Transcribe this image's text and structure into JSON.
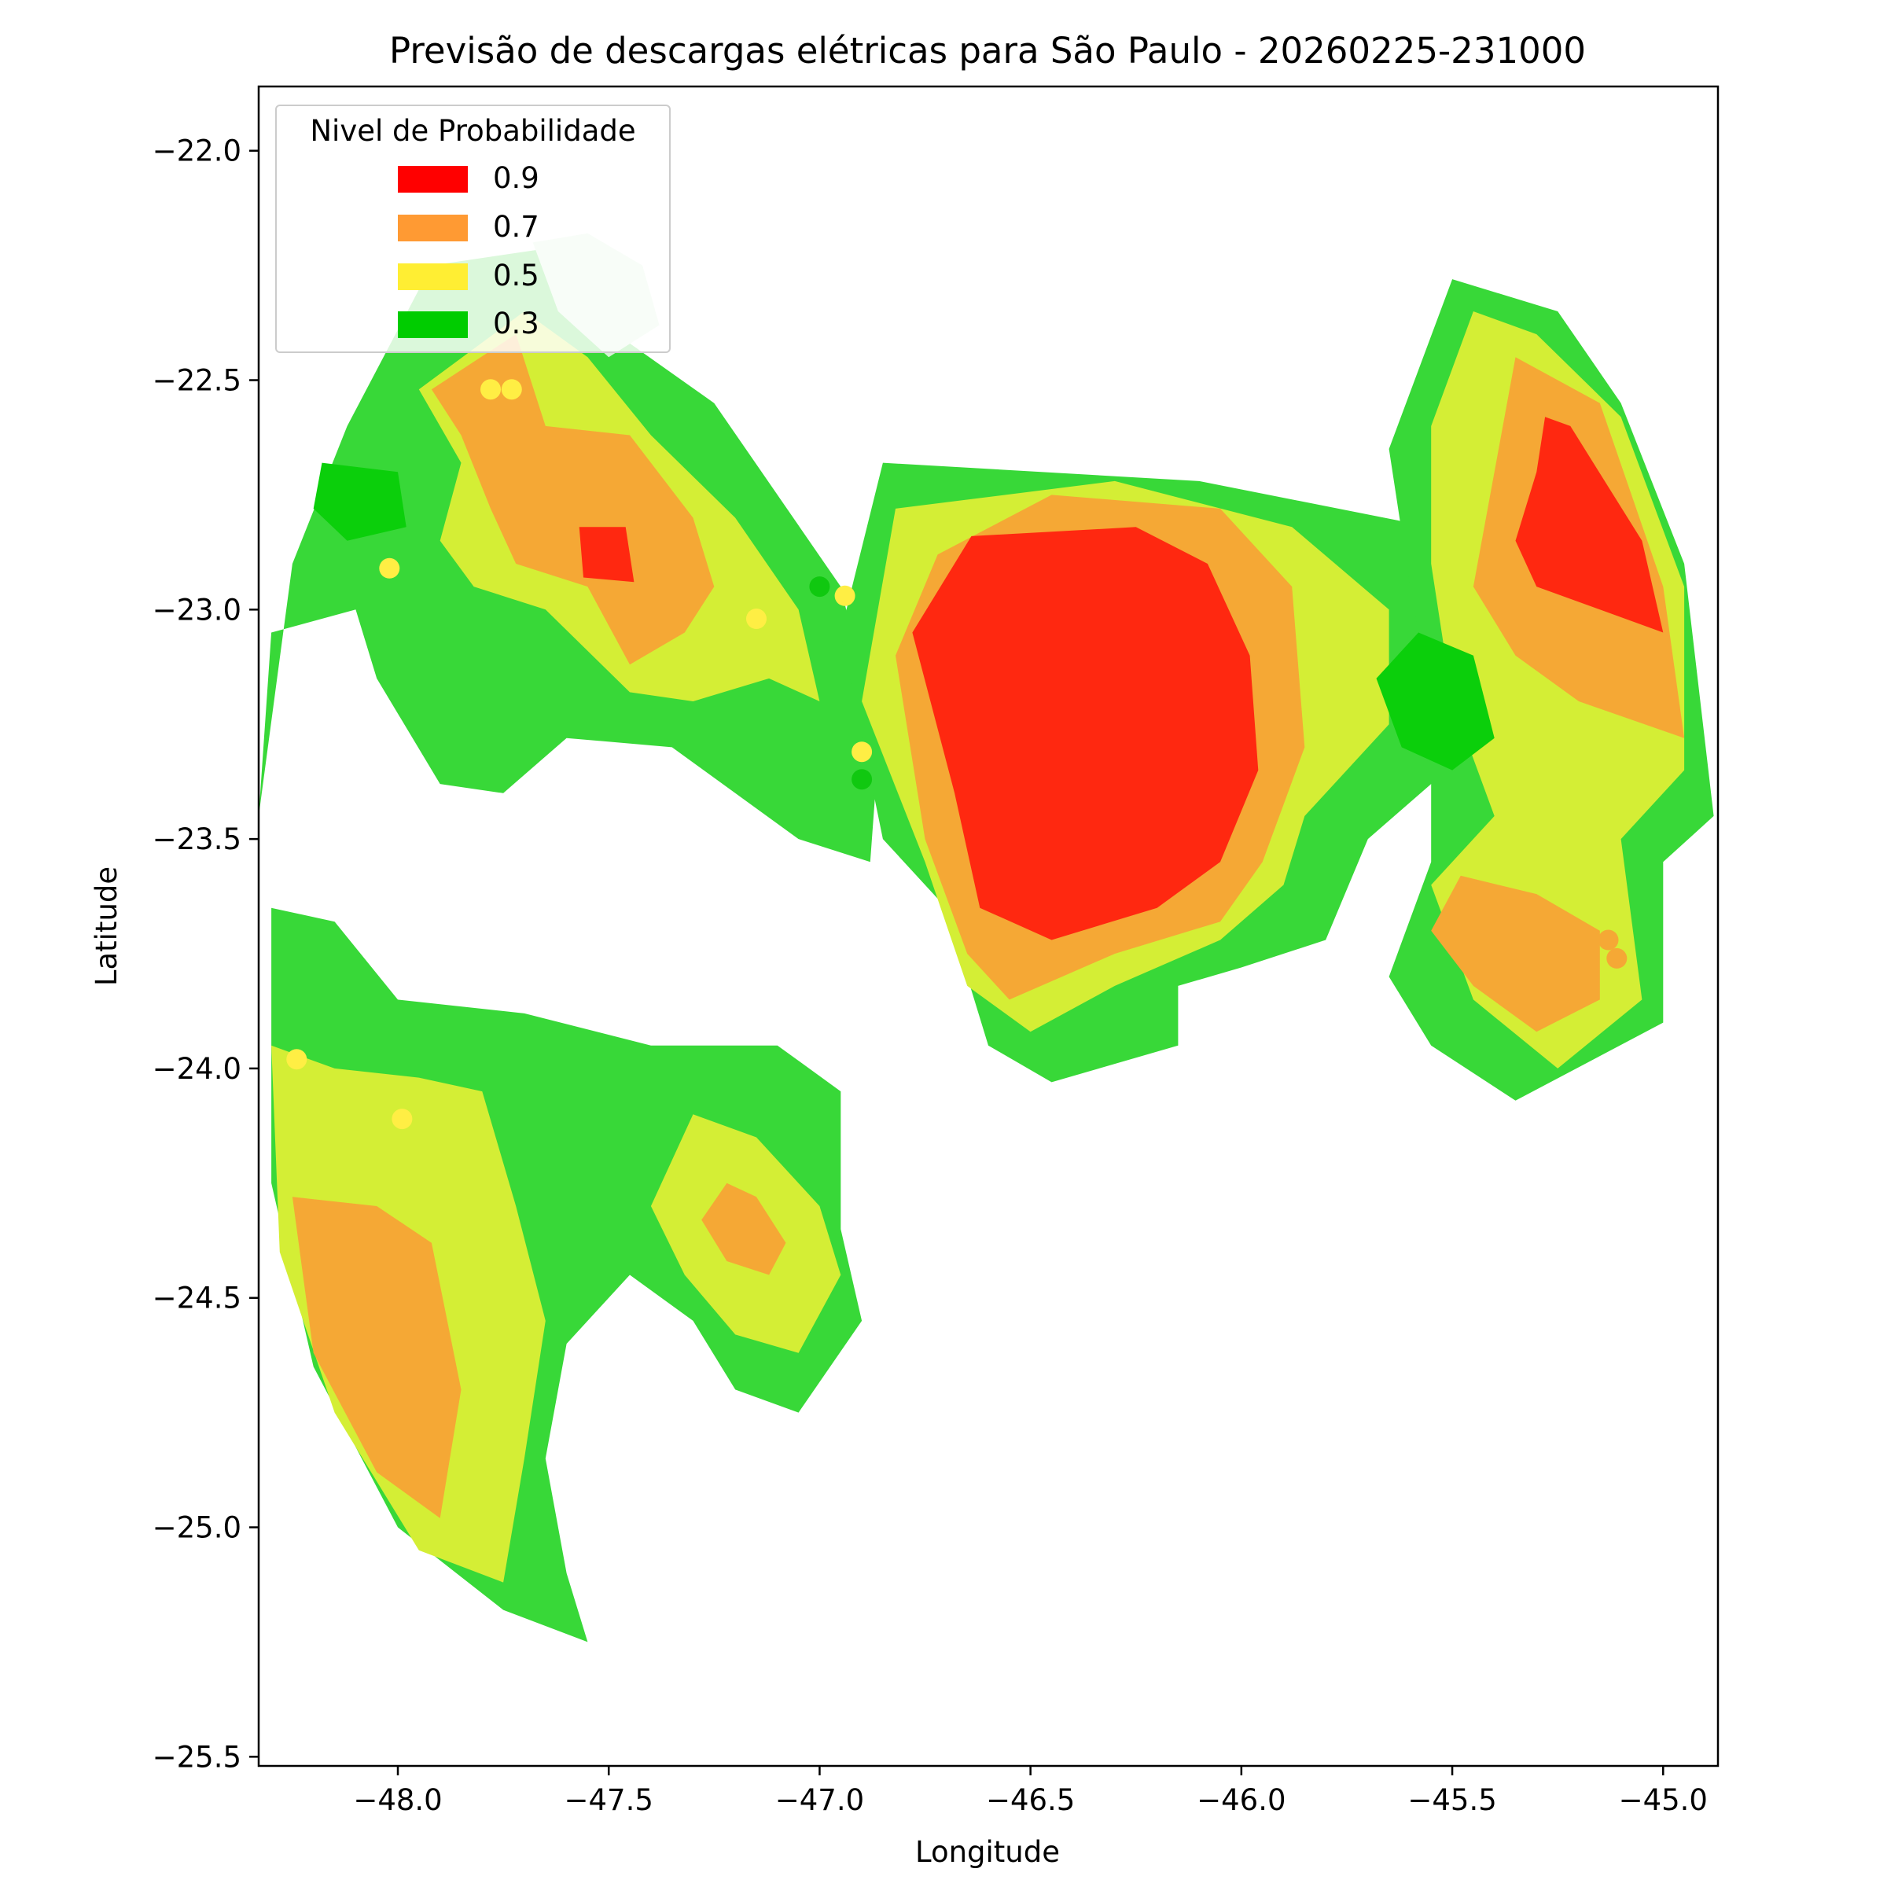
{
  "chart_data": {
    "type": "heatmap",
    "title": "Previsão de descargas elétricas para São Paulo - 20260225-231000",
    "xlabel": "Longitude",
    "ylabel": "Latitude",
    "xlim": [
      -48.33,
      -44.87
    ],
    "ylim": [
      -25.52,
      -21.86
    ],
    "xticks": [
      -48.0,
      -47.5,
      -47.0,
      -46.5,
      -46.0,
      -45.5,
      -45.0
    ],
    "xtick_labels": [
      "−48.0",
      "−47.5",
      "−47.0",
      "−46.5",
      "−46.0",
      "−45.5",
      "−45.0"
    ],
    "yticks": [
      -22.0,
      -22.5,
      -23.0,
      -23.5,
      -24.0,
      -24.5,
      -25.0,
      -25.5
    ],
    "ytick_labels": [
      "−22.0",
      "−22.5",
      "−23.0",
      "−23.5",
      "−24.0",
      "−24.5",
      "−25.0",
      "−25.5"
    ],
    "legend": {
      "title": "Nivel de Probabilidade",
      "placement": "upper-left",
      "entries": [
        {
          "label": "0.9",
          "color": "#ff0000"
        },
        {
          "label": "0.7",
          "color": "#ff9a33"
        },
        {
          "label": "0.5",
          "color": "#ffee33"
        },
        {
          "label": "0.3",
          "color": "#00cc00"
        }
      ]
    },
    "fill_colors": {
      "0.3": "#38d838",
      "0.5": "#d4ee35",
      "0.7": "#f5a835",
      "0.9": "#ff2810",
      "dense_0.3": "#0bcf0b",
      "faded": "#d5f3d5"
    },
    "regions": [
      {
        "name": "west-green-0.3",
        "level": "0.3",
        "points": [
          [
            -47.92,
            -22.25
          ],
          [
            -47.55,
            -22.2
          ],
          [
            -47.45,
            -22.42
          ],
          [
            -47.25,
            -22.55
          ],
          [
            -47.1,
            -22.75
          ],
          [
            -46.95,
            -22.95
          ],
          [
            -46.86,
            -23.3
          ],
          [
            -46.88,
            -23.55
          ],
          [
            -47.05,
            -23.5
          ],
          [
            -47.35,
            -23.3
          ],
          [
            -47.6,
            -23.28
          ],
          [
            -47.75,
            -23.4
          ],
          [
            -47.9,
            -23.38
          ],
          [
            -48.05,
            -23.15
          ],
          [
            -48.1,
            -23.0
          ],
          [
            -48.3,
            -23.05
          ],
          [
            -48.33,
            -23.45
          ],
          [
            -48.25,
            -22.9
          ],
          [
            -48.12,
            -22.6
          ]
        ]
      },
      {
        "name": "west-yellow-0.5",
        "level": "0.5",
        "points": [
          [
            -47.95,
            -22.52
          ],
          [
            -47.7,
            -22.35
          ],
          [
            -47.55,
            -22.45
          ],
          [
            -47.4,
            -22.62
          ],
          [
            -47.2,
            -22.8
          ],
          [
            -47.05,
            -23.0
          ],
          [
            -47.0,
            -23.2
          ],
          [
            -47.12,
            -23.15
          ],
          [
            -47.3,
            -23.2
          ],
          [
            -47.45,
            -23.18
          ],
          [
            -47.65,
            -23.0
          ],
          [
            -47.82,
            -22.95
          ],
          [
            -47.9,
            -22.85
          ],
          [
            -47.85,
            -22.68
          ]
        ]
      },
      {
        "name": "west-orange-0.7",
        "level": "0.7",
        "points": [
          [
            -47.92,
            -22.52
          ],
          [
            -47.72,
            -22.4
          ],
          [
            -47.65,
            -22.6
          ],
          [
            -47.45,
            -22.62
          ],
          [
            -47.3,
            -22.8
          ],
          [
            -47.25,
            -22.95
          ],
          [
            -47.32,
            -23.05
          ],
          [
            -47.45,
            -23.12
          ],
          [
            -47.55,
            -22.95
          ],
          [
            -47.72,
            -22.9
          ],
          [
            -47.78,
            -22.78
          ],
          [
            -47.85,
            -22.62
          ]
        ]
      },
      {
        "name": "west-red-0.9",
        "level": "0.9",
        "points": [
          [
            -47.57,
            -22.82
          ],
          [
            -47.46,
            -22.82
          ],
          [
            -47.44,
            -22.94
          ],
          [
            -47.56,
            -22.93
          ]
        ]
      },
      {
        "name": "west-faded-top",
        "level": "faded",
        "points": [
          [
            -47.68,
            -22.2
          ],
          [
            -47.55,
            -22.18
          ],
          [
            -47.42,
            -22.25
          ],
          [
            -47.38,
            -22.38
          ],
          [
            -47.5,
            -22.45
          ],
          [
            -47.62,
            -22.35
          ]
        ]
      },
      {
        "name": "dense-green-west",
        "level": "dense_0.3",
        "points": [
          [
            -48.18,
            -22.68
          ],
          [
            -48.0,
            -22.7
          ],
          [
            -47.98,
            -22.82
          ],
          [
            -48.12,
            -22.85
          ],
          [
            -48.2,
            -22.78
          ]
        ]
      },
      {
        "name": "central-green-0.3",
        "level": "0.3",
        "points": [
          [
            -46.85,
            -22.68
          ],
          [
            -46.1,
            -22.72
          ],
          [
            -45.55,
            -22.82
          ],
          [
            -45.4,
            -23.0
          ],
          [
            -45.45,
            -23.3
          ],
          [
            -45.7,
            -23.5
          ],
          [
            -45.8,
            -23.72
          ],
          [
            -46.0,
            -23.78
          ],
          [
            -46.15,
            -23.82
          ],
          [
            -46.15,
            -23.95
          ],
          [
            -46.45,
            -24.03
          ],
          [
            -46.6,
            -23.95
          ],
          [
            -46.7,
            -23.65
          ],
          [
            -46.85,
            -23.5
          ],
          [
            -46.95,
            -23.05
          ]
        ]
      },
      {
        "name": "central-yellow-0.5",
        "level": "0.5",
        "points": [
          [
            -46.82,
            -22.78
          ],
          [
            -46.3,
            -22.72
          ],
          [
            -45.88,
            -22.82
          ],
          [
            -45.65,
            -23.0
          ],
          [
            -45.65,
            -23.25
          ],
          [
            -45.85,
            -23.45
          ],
          [
            -45.9,
            -23.6
          ],
          [
            -46.05,
            -23.72
          ],
          [
            -46.3,
            -23.82
          ],
          [
            -46.5,
            -23.92
          ],
          [
            -46.65,
            -23.82
          ],
          [
            -46.75,
            -23.55
          ],
          [
            -46.9,
            -23.2
          ]
        ]
      },
      {
        "name": "central-orange-0.7",
        "level": "0.7",
        "points": [
          [
            -46.72,
            -22.88
          ],
          [
            -46.45,
            -22.75
          ],
          [
            -46.05,
            -22.78
          ],
          [
            -45.88,
            -22.95
          ],
          [
            -45.85,
            -23.3
          ],
          [
            -45.95,
            -23.55
          ],
          [
            -46.05,
            -23.68
          ],
          [
            -46.3,
            -23.75
          ],
          [
            -46.55,
            -23.85
          ],
          [
            -46.65,
            -23.75
          ],
          [
            -46.75,
            -23.5
          ],
          [
            -46.82,
            -23.1
          ]
        ]
      },
      {
        "name": "central-red-0.9",
        "level": "0.9",
        "points": [
          [
            -46.64,
            -22.84
          ],
          [
            -46.25,
            -22.82
          ],
          [
            -46.08,
            -22.9
          ],
          [
            -45.98,
            -23.1
          ],
          [
            -45.96,
            -23.35
          ],
          [
            -46.05,
            -23.55
          ],
          [
            -46.2,
            -23.65
          ],
          [
            -46.45,
            -23.72
          ],
          [
            -46.62,
            -23.65
          ],
          [
            -46.68,
            -23.4
          ],
          [
            -46.78,
            -23.05
          ]
        ]
      },
      {
        "name": "east-green-0.3",
        "level": "0.3",
        "points": [
          [
            -45.5,
            -22.28
          ],
          [
            -45.25,
            -22.35
          ],
          [
            -45.1,
            -22.55
          ],
          [
            -44.95,
            -22.9
          ],
          [
            -44.88,
            -23.45
          ],
          [
            -45.0,
            -23.55
          ],
          [
            -45.0,
            -23.9
          ],
          [
            -45.35,
            -24.07
          ],
          [
            -45.55,
            -23.95
          ],
          [
            -45.65,
            -23.8
          ],
          [
            -45.55,
            -23.55
          ],
          [
            -45.55,
            -23.2
          ],
          [
            -45.6,
            -22.95
          ],
          [
            -45.65,
            -22.65
          ]
        ]
      },
      {
        "name": "east-yellow-0.5",
        "level": "0.5",
        "points": [
          [
            -45.45,
            -22.35
          ],
          [
            -45.3,
            -22.4
          ],
          [
            -45.1,
            -22.58
          ],
          [
            -44.95,
            -22.95
          ],
          [
            -44.95,
            -23.35
          ],
          [
            -45.1,
            -23.5
          ],
          [
            -45.05,
            -23.85
          ],
          [
            -45.25,
            -24.0
          ],
          [
            -45.45,
            -23.85
          ],
          [
            -45.55,
            -23.6
          ],
          [
            -45.4,
            -23.45
          ],
          [
            -45.5,
            -23.2
          ],
          [
            -45.55,
            -22.9
          ],
          [
            -45.55,
            -22.6
          ]
        ]
      },
      {
        "name": "east-orange-0.7",
        "level": "0.7",
        "points": [
          [
            -45.35,
            -22.45
          ],
          [
            -45.15,
            -22.55
          ],
          [
            -45.0,
            -22.95
          ],
          [
            -44.95,
            -23.28
          ],
          [
            -45.2,
            -23.2
          ],
          [
            -45.35,
            -23.1
          ],
          [
            -45.45,
            -22.95
          ],
          [
            -45.4,
            -22.7
          ]
        ]
      },
      {
        "name": "east-orange-lower-0.7",
        "level": "0.7",
        "points": [
          [
            -45.48,
            -23.58
          ],
          [
            -45.3,
            -23.62
          ],
          [
            -45.15,
            -23.7
          ],
          [
            -45.15,
            -23.85
          ],
          [
            -45.3,
            -23.92
          ],
          [
            -45.45,
            -23.82
          ],
          [
            -45.55,
            -23.7
          ]
        ]
      },
      {
        "name": "east-red-0.9",
        "level": "0.9",
        "points": [
          [
            -45.28,
            -22.58
          ],
          [
            -45.22,
            -22.6
          ],
          [
            -45.05,
            -22.85
          ],
          [
            -45.0,
            -23.05
          ],
          [
            -45.15,
            -23.0
          ],
          [
            -45.3,
            -22.95
          ],
          [
            -45.35,
            -22.85
          ],
          [
            -45.3,
            -22.7
          ]
        ]
      },
      {
        "name": "dense-green-east",
        "level": "dense_0.3",
        "points": [
          [
            -45.58,
            -23.05
          ],
          [
            -45.45,
            -23.1
          ],
          [
            -45.4,
            -23.28
          ],
          [
            -45.5,
            -23.35
          ],
          [
            -45.62,
            -23.3
          ],
          [
            -45.68,
            -23.15
          ]
        ]
      },
      {
        "name": "southwest-green-0.3",
        "level": "0.3",
        "points": [
          [
            -48.3,
            -23.65
          ],
          [
            -48.15,
            -23.68
          ],
          [
            -48.0,
            -23.85
          ],
          [
            -47.7,
            -23.88
          ],
          [
            -47.4,
            -23.95
          ],
          [
            -47.1,
            -23.95
          ],
          [
            -46.95,
            -24.05
          ],
          [
            -46.95,
            -24.35
          ],
          [
            -46.9,
            -24.55
          ],
          [
            -47.05,
            -24.75
          ],
          [
            -47.2,
            -24.7
          ],
          [
            -47.3,
            -24.55
          ],
          [
            -47.45,
            -24.45
          ],
          [
            -47.6,
            -24.6
          ],
          [
            -47.65,
            -24.85
          ],
          [
            -47.6,
            -25.1
          ],
          [
            -47.55,
            -25.25
          ],
          [
            -47.75,
            -25.18
          ],
          [
            -48.0,
            -25.0
          ],
          [
            -48.2,
            -24.65
          ],
          [
            -48.3,
            -24.25
          ]
        ]
      },
      {
        "name": "southwest-yellow-0.5",
        "level": "0.5",
        "points": [
          [
            -48.3,
            -23.95
          ],
          [
            -48.15,
            -24.0
          ],
          [
            -47.95,
            -24.02
          ],
          [
            -47.8,
            -24.05
          ],
          [
            -47.72,
            -24.3
          ],
          [
            -47.65,
            -24.55
          ],
          [
            -47.7,
            -24.85
          ],
          [
            -47.75,
            -25.12
          ],
          [
            -47.95,
            -25.05
          ],
          [
            -48.15,
            -24.75
          ],
          [
            -48.28,
            -24.4
          ]
        ]
      },
      {
        "name": "southwest-orange-0.7",
        "level": "0.7",
        "points": [
          [
            -48.25,
            -24.28
          ],
          [
            -48.05,
            -24.3
          ],
          [
            -47.92,
            -24.38
          ],
          [
            -47.85,
            -24.7
          ],
          [
            -47.9,
            -24.98
          ],
          [
            -48.05,
            -24.88
          ],
          [
            -48.2,
            -24.62
          ]
        ]
      },
      {
        "name": "south-central-yellow-0.5",
        "level": "0.5",
        "points": [
          [
            -47.3,
            -24.1
          ],
          [
            -47.15,
            -24.15
          ],
          [
            -47.0,
            -24.3
          ],
          [
            -46.95,
            -24.45
          ],
          [
            -47.05,
            -24.62
          ],
          [
            -47.2,
            -24.58
          ],
          [
            -47.32,
            -24.45
          ],
          [
            -47.4,
            -24.3
          ]
        ]
      },
      {
        "name": "south-central-orange-0.7",
        "level": "0.7",
        "points": [
          [
            -47.22,
            -24.25
          ],
          [
            -47.15,
            -24.28
          ],
          [
            -47.08,
            -24.38
          ],
          [
            -47.12,
            -24.45
          ],
          [
            -47.22,
            -24.42
          ],
          [
            -47.28,
            -24.33
          ]
        ]
      }
    ],
    "points": [
      {
        "lon": -48.02,
        "lat": -22.91,
        "level": "0.5"
      },
      {
        "lon": -47.78,
        "lat": -22.52,
        "level": "0.5"
      },
      {
        "lon": -47.73,
        "lat": -22.52,
        "level": "0.5"
      },
      {
        "lon": -47.15,
        "lat": -23.02,
        "level": "0.5"
      },
      {
        "lon": -46.94,
        "lat": -22.97,
        "level": "0.5"
      },
      {
        "lon": -47.0,
        "lat": -22.95,
        "level": "dense_0.3"
      },
      {
        "lon": -46.9,
        "lat": -23.31,
        "level": "0.5"
      },
      {
        "lon": -46.9,
        "lat": -23.37,
        "level": "dense_0.3"
      },
      {
        "lon": -48.24,
        "lat": -23.98,
        "level": "0.5"
      },
      {
        "lon": -47.99,
        "lat": -24.11,
        "level": "0.5"
      },
      {
        "lon": -45.13,
        "lat": -23.72,
        "level": "0.7"
      },
      {
        "lon": -45.11,
        "lat": -23.76,
        "level": "0.7"
      }
    ]
  }
}
